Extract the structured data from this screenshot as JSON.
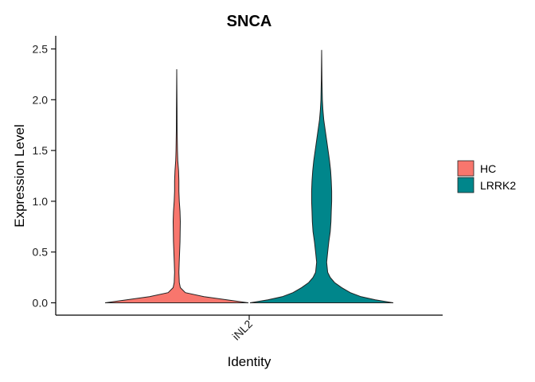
{
  "chart_data": {
    "type": "violin",
    "title": "SNCA",
    "xlabel": "Identity",
    "ylabel": "Expression Level",
    "categories": [
      "iNL2"
    ],
    "ylim": [
      -0.12,
      2.63
    ],
    "yticks": [
      0.0,
      0.5,
      1.0,
      1.5,
      2.0,
      2.5
    ],
    "ytick_labels": [
      "0.0",
      "0.5",
      "1.0",
      "1.5",
      "2.0",
      "2.5"
    ],
    "legend": {
      "position": "right",
      "entries": [
        {
          "name": "HC",
          "color": "#F8766D"
        },
        {
          "name": "LRRK2",
          "color": "#00868B"
        }
      ]
    },
    "series": [
      {
        "name": "HC",
        "color": "#F8766D",
        "category": "iNL2",
        "max": 2.3,
        "density": [
          [
            0.0,
            1.0
          ],
          [
            0.03,
            0.7
          ],
          [
            0.06,
            0.38
          ],
          [
            0.1,
            0.12
          ],
          [
            0.15,
            0.05
          ],
          [
            0.2,
            0.035
          ],
          [
            0.3,
            0.03
          ],
          [
            0.4,
            0.034
          ],
          [
            0.5,
            0.04
          ],
          [
            0.6,
            0.045
          ],
          [
            0.7,
            0.048
          ],
          [
            0.8,
            0.05
          ],
          [
            0.9,
            0.045
          ],
          [
            1.0,
            0.035
          ],
          [
            1.1,
            0.03
          ],
          [
            1.2,
            0.03
          ],
          [
            1.3,
            0.025
          ],
          [
            1.4,
            0.015
          ],
          [
            1.5,
            0.01
          ],
          [
            1.7,
            0.006
          ],
          [
            1.9,
            0.004
          ],
          [
            2.1,
            0.002
          ],
          [
            2.3,
            0.0
          ]
        ]
      },
      {
        "name": "LRRK2",
        "color": "#00868B",
        "category": "iNL2",
        "max": 2.49,
        "density": [
          [
            0.0,
            1.0
          ],
          [
            0.03,
            0.75
          ],
          [
            0.06,
            0.55
          ],
          [
            0.1,
            0.4
          ],
          [
            0.15,
            0.28
          ],
          [
            0.2,
            0.18
          ],
          [
            0.25,
            0.12
          ],
          [
            0.3,
            0.085
          ],
          [
            0.4,
            0.07
          ],
          [
            0.5,
            0.085
          ],
          [
            0.6,
            0.1
          ],
          [
            0.7,
            0.12
          ],
          [
            0.8,
            0.13
          ],
          [
            0.9,
            0.135
          ],
          [
            1.0,
            0.14
          ],
          [
            1.1,
            0.14
          ],
          [
            1.2,
            0.135
          ],
          [
            1.3,
            0.125
          ],
          [
            1.4,
            0.11
          ],
          [
            1.5,
            0.09
          ],
          [
            1.6,
            0.07
          ],
          [
            1.7,
            0.05
          ],
          [
            1.8,
            0.03
          ],
          [
            1.9,
            0.018
          ],
          [
            2.0,
            0.01
          ],
          [
            2.2,
            0.004
          ],
          [
            2.49,
            0.0
          ]
        ]
      }
    ]
  }
}
